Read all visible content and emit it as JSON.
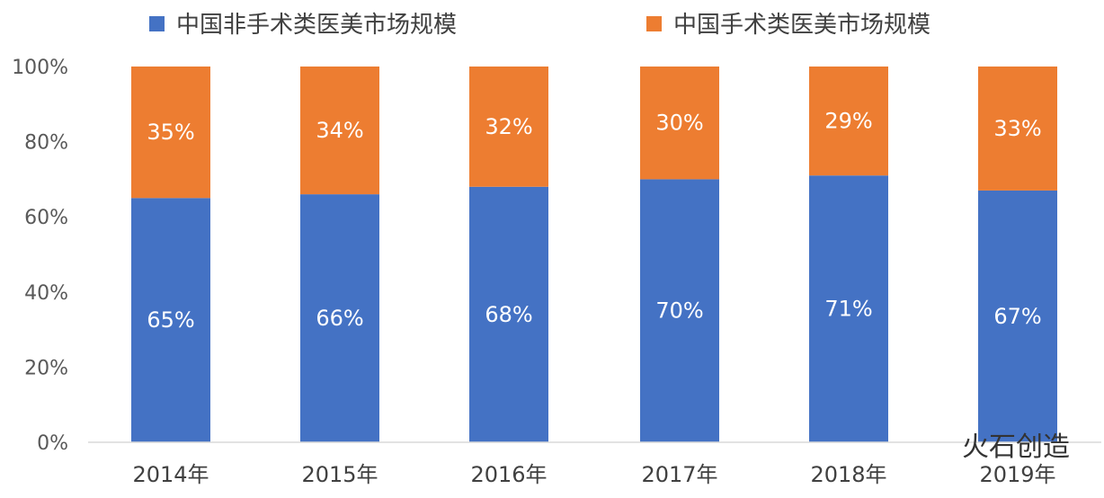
{
  "chart_data": {
    "type": "bar",
    "stacked": true,
    "categories": [
      "2014年",
      "2015年",
      "2016年",
      "2017年",
      "2018年",
      "2019年"
    ],
    "series": [
      {
        "name": "中国非手术类医美市场规模",
        "values": [
          65,
          66,
          68,
          70,
          71,
          67
        ],
        "labels": [
          "65%",
          "66%",
          "68%",
          "70%",
          "71%",
          "67%"
        ],
        "color": "#4472C4"
      },
      {
        "name": "中国手术类医美市场规模",
        "values": [
          35,
          34,
          32,
          30,
          29,
          33
        ],
        "labels": [
          "35%",
          "34%",
          "32%",
          "30%",
          "29%",
          "33%"
        ],
        "color": "#ED7D31"
      }
    ],
    "yticks": [
      "0%",
      "20%",
      "40%",
      "60%",
      "80%",
      "100%"
    ],
    "ylim": [
      0,
      100
    ],
    "grid": false,
    "legend": "top"
  },
  "watermark": "火石创造"
}
